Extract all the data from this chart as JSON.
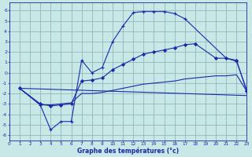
{
  "background_color": "#c8e8e8",
  "grid_color": "#90b8b8",
  "line_color": "#1a28aa",
  "xlabel": "Graphe des températures (°c)",
  "xlim": [
    0,
    23
  ],
  "ylim": [
    -6.5,
    6.8
  ],
  "yticks": [
    -6,
    -5,
    -4,
    -3,
    -2,
    -1,
    0,
    1,
    2,
    3,
    4,
    5,
    6
  ],
  "xticks": [
    0,
    1,
    2,
    3,
    4,
    5,
    6,
    7,
    8,
    9,
    10,
    11,
    12,
    13,
    14,
    15,
    16,
    17,
    18,
    19,
    20,
    21,
    22,
    23
  ],
  "line1_x": [
    1,
    3,
    4,
    5,
    6,
    7,
    8,
    9,
    10,
    11,
    12,
    13,
    14,
    15,
    16,
    17,
    21,
    22,
    23
  ],
  "line1_y": [
    -1.5,
    -3.1,
    -5.5,
    -4.7,
    -4.7,
    1.2,
    0.0,
    0.5,
    3.0,
    4.5,
    5.8,
    5.9,
    5.9,
    5.9,
    5.7,
    5.2,
    1.4,
    1.1,
    -1.7
  ],
  "line2_x": [
    1,
    3,
    4,
    5,
    6,
    7,
    8,
    9,
    10,
    11,
    12,
    13,
    14,
    15,
    16,
    17,
    18,
    20,
    21,
    22,
    23
  ],
  "line2_y": [
    -1.5,
    -3.0,
    -3.2,
    -3.1,
    -3.0,
    -0.8,
    -0.7,
    -0.5,
    0.3,
    0.8,
    1.3,
    1.8,
    2.0,
    2.2,
    2.4,
    2.7,
    2.8,
    1.4,
    1.4,
    1.2,
    -1.8
  ],
  "line3_x": [
    1,
    3,
    4,
    5,
    6,
    7,
    8,
    9,
    10,
    11,
    12,
    13,
    14,
    15,
    16,
    17,
    18,
    19,
    20,
    21,
    22,
    23
  ],
  "line3_y": [
    -1.5,
    -3.1,
    -3.1,
    -3.0,
    -2.9,
    -2.0,
    -2.0,
    -1.9,
    -1.7,
    -1.5,
    -1.3,
    -1.1,
    -1.0,
    -0.9,
    -0.8,
    -0.6,
    -0.5,
    -0.4,
    -0.3,
    -0.3,
    -0.2,
    -1.8
  ],
  "line4_x": [
    1,
    23
  ],
  "line4_y": [
    -1.5,
    -2.2
  ]
}
